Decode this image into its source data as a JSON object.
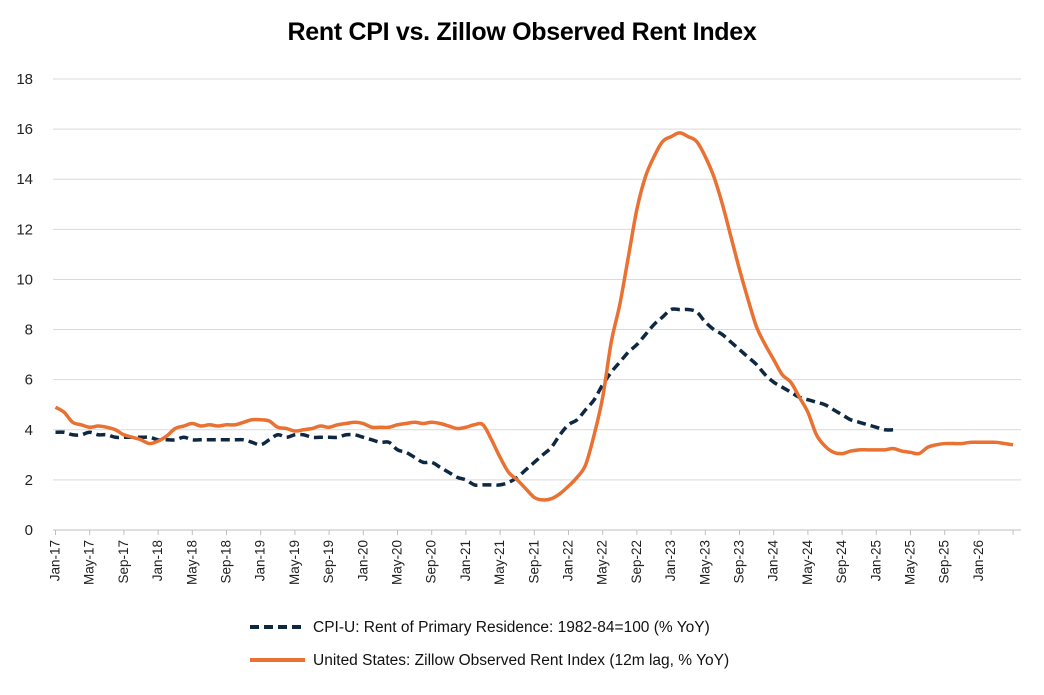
{
  "chart_data": {
    "type": "line",
    "title": "Rent CPI vs. Zillow Observed Rent Index",
    "ylim": [
      0,
      18
    ],
    "yticks": [
      "0",
      "2",
      "4",
      "6",
      "8",
      "10",
      "12",
      "14",
      "16",
      "18"
    ],
    "x_start": "Jan-17",
    "x_tick_labels": [
      "Jan-17",
      "May-17",
      "Sep-17",
      "Jan-18",
      "May-18",
      "Sep-18",
      "Jan-19",
      "May-19",
      "Sep-19",
      "Jan-20",
      "May-20",
      "Sep-20",
      "Jan-21",
      "May-21",
      "Sep-21",
      "Jan-22",
      "May-22",
      "Sep-22",
      "Jan-23",
      "May-23",
      "Sep-23",
      "Jan-24",
      "May-24",
      "Sep-24",
      "Jan-25",
      "May-25",
      "Sep-25",
      "Jan-26"
    ],
    "grid": true,
    "legend_position": "bottom",
    "series": [
      {
        "name": "CPI-U: Rent of Primary Residence: 1982-84=100 (% YoY)",
        "color": "#0e2841",
        "style": "dashed",
        "values": [
          3.9,
          3.9,
          3.8,
          3.8,
          3.9,
          3.8,
          3.8,
          3.7,
          3.7,
          3.7,
          3.7,
          3.7,
          3.6,
          3.6,
          3.6,
          3.7,
          3.6,
          3.6,
          3.6,
          3.6,
          3.6,
          3.6,
          3.6,
          3.5,
          3.4,
          3.6,
          3.8,
          3.7,
          3.8,
          3.8,
          3.7,
          3.7,
          3.7,
          3.7,
          3.8,
          3.8,
          3.7,
          3.6,
          3.5,
          3.5,
          3.2,
          3.1,
          2.9,
          2.7,
          2.7,
          2.5,
          2.3,
          2.1,
          2.0,
          1.8,
          1.8,
          1.8,
          1.8,
          1.9,
          2.1,
          2.4,
          2.7,
          3.0,
          3.3,
          3.8,
          4.2,
          4.4,
          4.8,
          5.2,
          5.8,
          6.3,
          6.7,
          7.1,
          7.4,
          7.8,
          8.2,
          8.5,
          8.8,
          8.8,
          8.8,
          8.7,
          8.3,
          8.0,
          7.8,
          7.5,
          7.2,
          6.9,
          6.6,
          6.2,
          5.9,
          5.7,
          5.5,
          5.3,
          5.2,
          5.1,
          5.0,
          4.8,
          4.6,
          4.4,
          4.3,
          4.2,
          4.1,
          4.0,
          4.0
        ]
      },
      {
        "name": "United States: Zillow Observed Rent Index (12m lag, % YoY)",
        "color": "#e97132",
        "style": "solid",
        "values": [
          4.9,
          4.7,
          4.3,
          4.2,
          4.1,
          4.15,
          4.1,
          4.0,
          3.8,
          3.7,
          3.6,
          3.45,
          3.55,
          3.75,
          4.05,
          4.15,
          4.25,
          4.15,
          4.2,
          4.15,
          4.2,
          4.2,
          4.3,
          4.4,
          4.4,
          4.35,
          4.1,
          4.05,
          3.95,
          4.0,
          4.05,
          4.15,
          4.1,
          4.2,
          4.25,
          4.3,
          4.25,
          4.1,
          4.1,
          4.1,
          4.2,
          4.25,
          4.3,
          4.25,
          4.3,
          4.25,
          4.15,
          4.05,
          4.1,
          4.2,
          4.2,
          3.6,
          2.9,
          2.3,
          2.0,
          1.65,
          1.3,
          1.2,
          1.25,
          1.45,
          1.75,
          2.1,
          2.6,
          3.8,
          5.3,
          7.5,
          9.0,
          10.9,
          12.8,
          14.1,
          14.9,
          15.5,
          15.7,
          15.85,
          15.7,
          15.5,
          14.9,
          14.1,
          13.0,
          11.7,
          10.4,
          9.2,
          8.1,
          7.4,
          6.8,
          6.2,
          5.9,
          5.3,
          4.7,
          3.8,
          3.35,
          3.1,
          3.05,
          3.15,
          3.2,
          3.2,
          3.2,
          3.2,
          3.25,
          3.15,
          3.1,
          3.05,
          3.3,
          3.4,
          3.45,
          3.45,
          3.45,
          3.5,
          3.5,
          3.5,
          3.5,
          3.45,
          3.4
        ]
      }
    ]
  }
}
